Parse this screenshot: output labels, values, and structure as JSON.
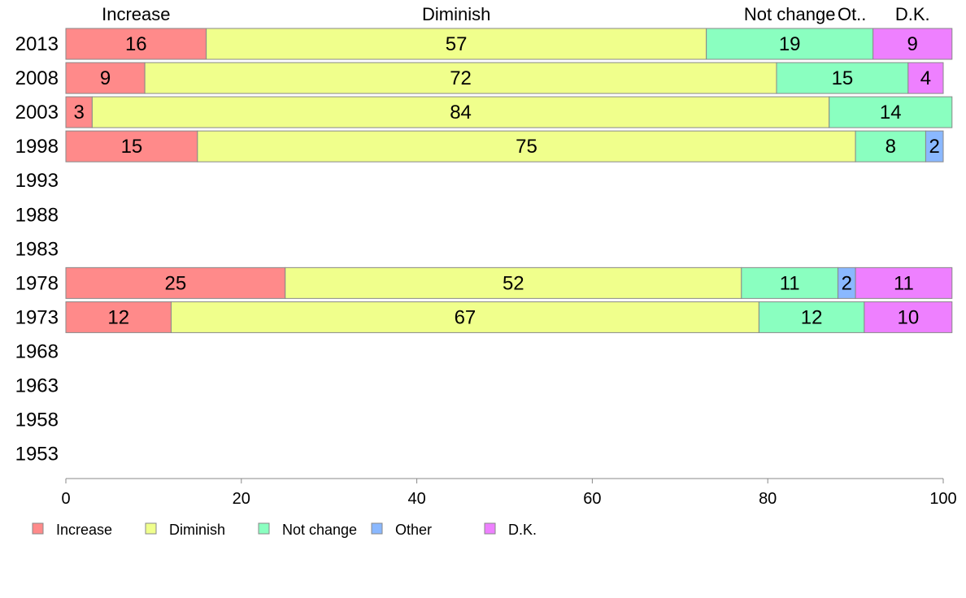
{
  "chart_data": {
    "type": "bar",
    "orientation": "horizontal",
    "stacked": true,
    "categories": [
      "2013",
      "2008",
      "2003",
      "1998",
      "1993",
      "1988",
      "1983",
      "1978",
      "1973",
      "1968",
      "1963",
      "1958",
      "1953"
    ],
    "series": [
      {
        "name": "Increase",
        "color": "#ff8a8a",
        "values": [
          16,
          9,
          3,
          15,
          null,
          null,
          null,
          25,
          12,
          null,
          null,
          null,
          null
        ]
      },
      {
        "name": "Diminish",
        "color": "#f0ff8c",
        "values": [
          57,
          72,
          84,
          75,
          null,
          null,
          null,
          52,
          67,
          null,
          null,
          null,
          null
        ]
      },
      {
        "name": "Not change",
        "color": "#8affc0",
        "values": [
          19,
          15,
          14,
          8,
          null,
          null,
          null,
          11,
          12,
          null,
          null,
          null,
          null
        ]
      },
      {
        "name": "Other",
        "color": "#8ab8ff",
        "values": [
          0,
          0,
          0,
          2,
          null,
          null,
          null,
          2,
          0,
          null,
          null,
          null,
          null
        ]
      },
      {
        "name": "D.K.",
        "color": "#ee80ff",
        "values": [
          9,
          4,
          0,
          0,
          null,
          null,
          null,
          11,
          10,
          null,
          null,
          null,
          null
        ]
      }
    ],
    "top_labels": [
      "Increase",
      "Diminish",
      "Not change",
      "Ot..",
      "D.K."
    ],
    "xlim": [
      0,
      100
    ],
    "xticks": [
      0,
      20,
      40,
      60,
      80,
      100
    ],
    "legend_position": "bottom",
    "grid": false
  }
}
